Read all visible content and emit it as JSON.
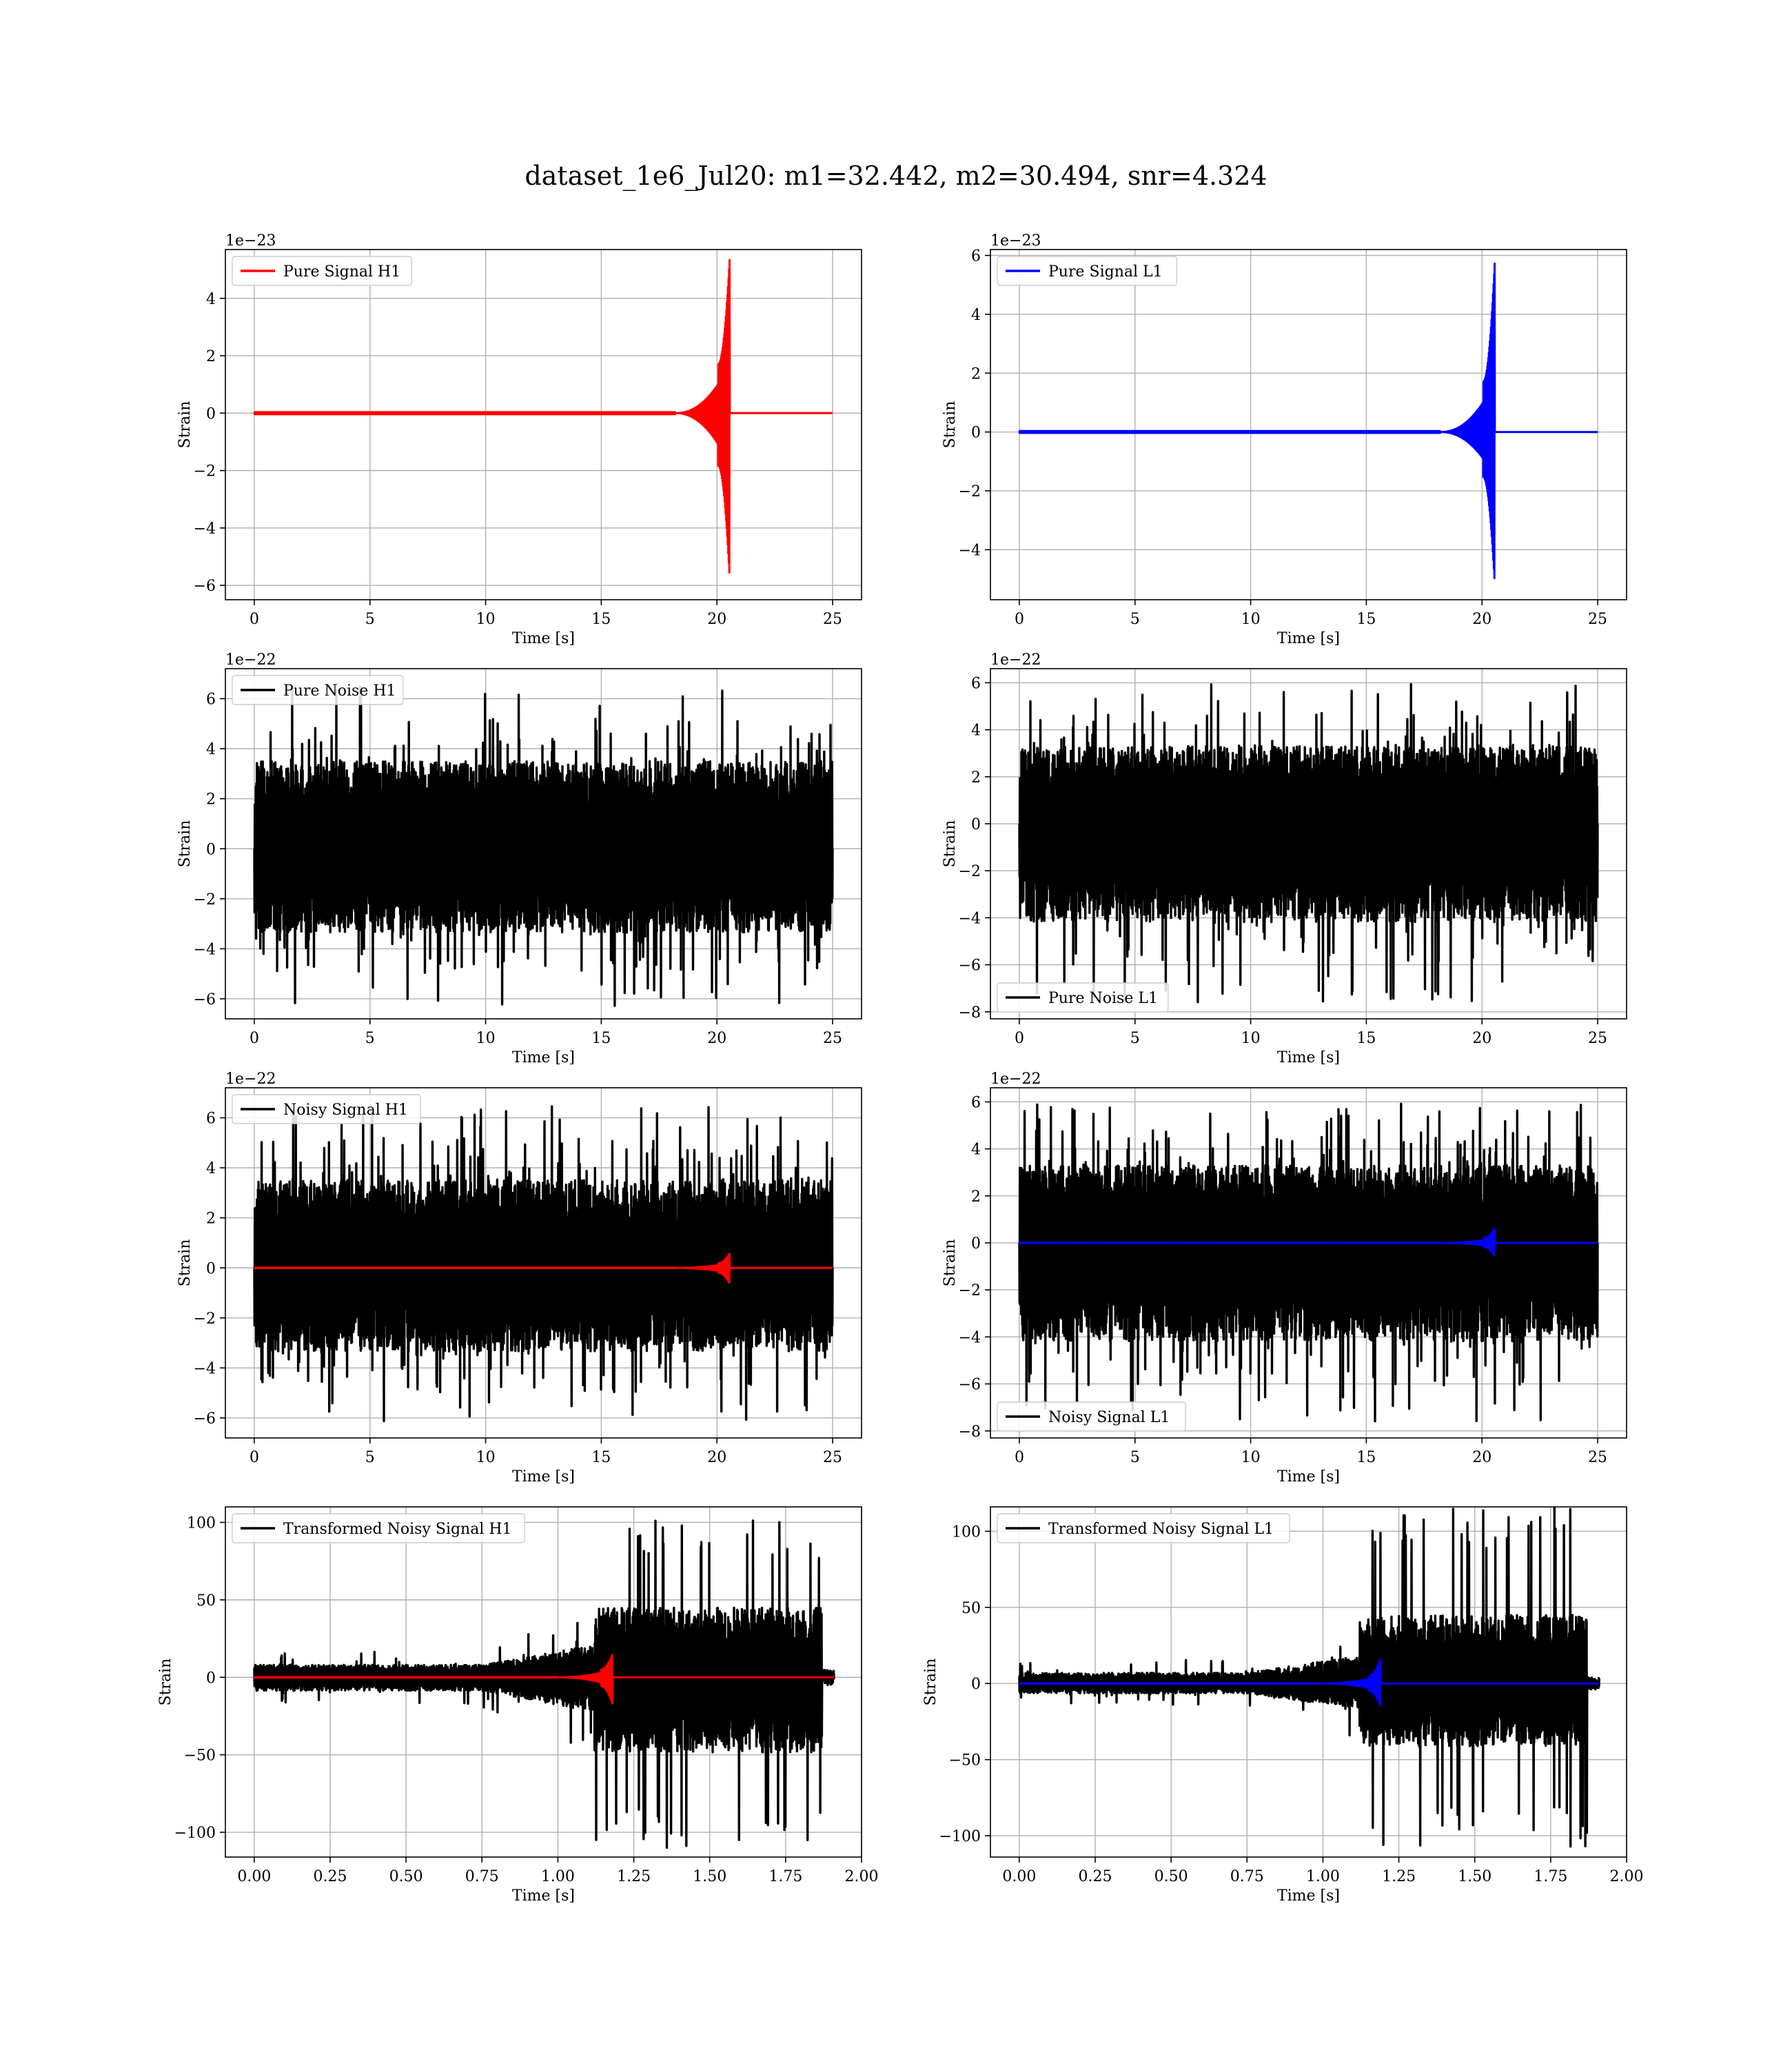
{
  "title": "dataset_1e6_Jul20: m1=32.442, m2=30.494, snr=4.324",
  "colors": {
    "h1_signal": "#ff0000",
    "l1_signal": "#0000ff",
    "noise": "#000000",
    "grid": "#b0b0b0"
  },
  "chart_data": [
    {
      "type": "line",
      "id": "pure-signal-h1",
      "xlabel": "Time [s]",
      "ylabel": "Strain",
      "offset_text": "1e−23",
      "xlim": [
        -1.25,
        26.25
      ],
      "ylim": [
        -6.5,
        5.7
      ],
      "xticks": [
        0,
        5,
        10,
        15,
        20,
        25
      ],
      "yticks": [
        -6,
        -4,
        -2,
        0,
        2,
        4
      ],
      "legend_loc": "upper-left",
      "grid": true,
      "series": [
        {
          "name": "Pure Signal H1",
          "color": "#ff0000",
          "kind": "chirp",
          "x_start": 0,
          "x_end": 25,
          "t_merge": 20.55,
          "merge_pos": 5.4,
          "merge_neg": -5.8,
          "plateau": 1.7,
          "onset": 18.2
        }
      ]
    },
    {
      "type": "line",
      "id": "pure-signal-l1",
      "xlabel": "Time [s]",
      "ylabel": "Strain",
      "offset_text": "1e−23",
      "xlim": [
        -1.25,
        26.25
      ],
      "ylim": [
        -5.7,
        6.2
      ],
      "xticks": [
        0,
        5,
        10,
        15,
        20,
        25
      ],
      "yticks": [
        -4,
        -2,
        0,
        2,
        4,
        6
      ],
      "legend_loc": "upper-left",
      "grid": true,
      "series": [
        {
          "name": "Pure Signal L1",
          "color": "#0000ff",
          "kind": "chirp",
          "x_start": 0,
          "x_end": 25,
          "t_merge": 20.55,
          "merge_pos": 5.8,
          "merge_neg": -5.2,
          "plateau": 1.7,
          "onset": 18.2
        }
      ]
    },
    {
      "type": "line",
      "id": "pure-noise-h1",
      "xlabel": "Time [s]",
      "ylabel": "Strain",
      "offset_text": "1e−22",
      "xlim": [
        -1.25,
        26.25
      ],
      "ylim": [
        -6.8,
        7.2
      ],
      "xticks": [
        0,
        5,
        10,
        15,
        20,
        25
      ],
      "yticks": [
        -6,
        -4,
        -2,
        0,
        2,
        4,
        6
      ],
      "legend_loc": "upper-left",
      "grid": true,
      "series": [
        {
          "name": "Pure Noise H1",
          "color": "#000000",
          "kind": "noise",
          "x_start": 0,
          "x_end": 25,
          "core": 3.5,
          "peak_pos": 6.6,
          "peak_neg": -6.3
        }
      ]
    },
    {
      "type": "line",
      "id": "pure-noise-l1",
      "xlabel": "Time [s]",
      "ylabel": "Strain",
      "offset_text": "1e−22",
      "xlim": [
        -1.25,
        26.25
      ],
      "ylim": [
        -8.3,
        6.6
      ],
      "xticks": [
        0,
        5,
        10,
        15,
        20,
        25
      ],
      "yticks": [
        -8,
        -6,
        -4,
        -2,
        0,
        2,
        4,
        6
      ],
      "legend_loc": "lower-left",
      "grid": true,
      "series": [
        {
          "name": "Pure Noise L1",
          "color": "#000000",
          "kind": "noise",
          "x_start": 0,
          "x_end": 25,
          "core": 3.3,
          "peak_pos": 6.0,
          "peak_neg": -7.6
        }
      ]
    },
    {
      "type": "line",
      "id": "noisy-signal-h1",
      "xlabel": "Time [s]",
      "ylabel": "Strain",
      "offset_text": "1e−22",
      "xlim": [
        -1.25,
        26.25
      ],
      "ylim": [
        -6.8,
        7.2
      ],
      "xticks": [
        0,
        5,
        10,
        15,
        20,
        25
      ],
      "yticks": [
        -6,
        -4,
        -2,
        0,
        2,
        4,
        6
      ],
      "legend_loc": "upper-left",
      "grid": true,
      "series": [
        {
          "name": "Noisy Signal H1",
          "color": "#000000",
          "kind": "noise",
          "x_start": 0,
          "x_end": 25,
          "core": 3.5,
          "peak_pos": 6.6,
          "peak_neg": -6.3
        },
        {
          "name": "",
          "color": "#ff0000",
          "kind": "chirp",
          "x_start": 0,
          "x_end": 25,
          "t_merge": 20.55,
          "merge_pos": 0.58,
          "merge_neg": -0.62,
          "plateau": 0.18,
          "onset": 18.2
        }
      ]
    },
    {
      "type": "line",
      "id": "noisy-signal-l1",
      "xlabel": "Time [s]",
      "ylabel": "Strain",
      "offset_text": "1e−22",
      "xlim": [
        -1.25,
        26.25
      ],
      "ylim": [
        -8.3,
        6.6
      ],
      "xticks": [
        0,
        5,
        10,
        15,
        20,
        25
      ],
      "yticks": [
        -8,
        -6,
        -4,
        -2,
        0,
        2,
        4,
        6
      ],
      "legend_loc": "lower-left",
      "grid": true,
      "series": [
        {
          "name": "Noisy Signal L1",
          "color": "#000000",
          "kind": "noise",
          "x_start": 0,
          "x_end": 25,
          "core": 3.3,
          "peak_pos": 6.0,
          "peak_neg": -7.6
        },
        {
          "name": "",
          "color": "#0000ff",
          "kind": "chirp",
          "x_start": 0,
          "x_end": 25,
          "t_merge": 20.55,
          "merge_pos": 0.62,
          "merge_neg": -0.55,
          "plateau": 0.18,
          "onset": 18.2
        }
      ]
    },
    {
      "type": "line",
      "id": "transformed-noisy-signal-h1",
      "xlabel": "Time [s]",
      "ylabel": "Strain",
      "offset_text": "",
      "xlim": [
        -0.095,
        2.0
      ],
      "ylim": [
        -116,
        110
      ],
      "xticks": [
        0.0,
        0.25,
        0.5,
        0.75,
        1.0,
        1.25,
        1.5,
        1.75,
        2.0
      ],
      "xtick_labels": [
        "0.00",
        "0.25",
        "0.50",
        "0.75",
        "1.00",
        "1.25",
        "1.50",
        "1.75",
        "2.00"
      ],
      "yticks": [
        -100,
        -50,
        0,
        50,
        100
      ],
      "legend_loc": "upper-left",
      "grid": true,
      "series": [
        {
          "name": "Transformed Noisy Signal H1",
          "color": "#000000",
          "kind": "transformed",
          "x_start": 0,
          "x_end": 1.91,
          "low": 8,
          "t_jump": 1.12,
          "high": 45,
          "peak_pos": 102,
          "peak_neg": -110,
          "t_end": 1.87
        },
        {
          "name": "",
          "color": "#ff0000",
          "kind": "chirp",
          "x_start": 0,
          "x_end": 1.91,
          "t_merge": 1.18,
          "merge_pos": 15,
          "merge_neg": -17,
          "plateau": 5,
          "onset": 1.0
        }
      ]
    },
    {
      "type": "line",
      "id": "transformed-noisy-signal-l1",
      "xlabel": "Time [s]",
      "ylabel": "Strain",
      "offset_text": "",
      "xlim": [
        -0.095,
        2.0
      ],
      "ylim": [
        -114,
        116
      ],
      "xticks": [
        0.0,
        0.25,
        0.5,
        0.75,
        1.0,
        1.25,
        1.5,
        1.75,
        2.0
      ],
      "xtick_labels": [
        "0.00",
        "0.25",
        "0.50",
        "0.75",
        "1.00",
        "1.25",
        "1.50",
        "1.75",
        "2.00"
      ],
      "yticks": [
        -100,
        -50,
        0,
        50,
        100
      ],
      "legend_loc": "upper-left",
      "grid": true,
      "series": [
        {
          "name": "Transformed Noisy Signal L1",
          "color": "#000000",
          "kind": "transformed",
          "x_start": 0,
          "x_end": 1.91,
          "low": 7,
          "t_jump": 1.12,
          "high": 45,
          "peak_pos": 118,
          "peak_neg": -108,
          "t_end": 1.87
        },
        {
          "name": "",
          "color": "#0000ff",
          "kind": "chirp",
          "x_start": 0,
          "x_end": 1.91,
          "t_merge": 1.19,
          "merge_pos": 16,
          "merge_neg": -15,
          "plateau": 5,
          "onset": 1.0
        }
      ]
    }
  ]
}
